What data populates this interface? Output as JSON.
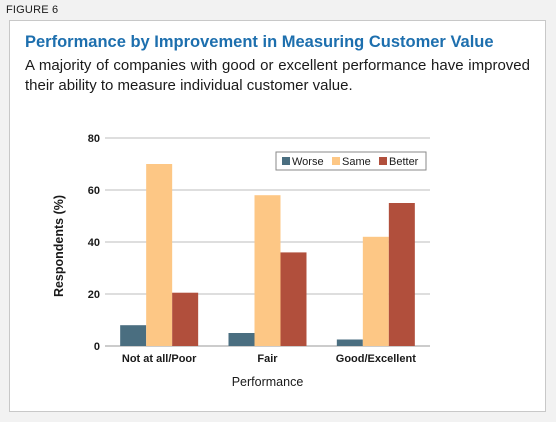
{
  "figure_label": "FIGURE 6",
  "title": "Performance by Improvement in Measuring Customer Value",
  "subtitle": "A majority of companies with good or excellent performance have improved their ability to measure individual customer value.",
  "chart_data": {
    "type": "bar",
    "categories": [
      "Not at all/Poor",
      "Fair",
      "Good/Excellent"
    ],
    "series": [
      {
        "name": "Worse",
        "values": [
          8,
          5,
          2.5
        ],
        "color": "#4a6e80"
      },
      {
        "name": "Same",
        "values": [
          70,
          58,
          42
        ],
        "color": "#fdc785"
      },
      {
        "name": "Better",
        "values": [
          20.5,
          36,
          55
        ],
        "color": "#b14f3c"
      }
    ],
    "xlabel": "Performance",
    "ylabel": "Respondents (%)",
    "ylim": [
      0,
      80
    ],
    "yticks": [
      0,
      20,
      40,
      60,
      80
    ],
    "grid": true,
    "legend_position": "top-right"
  }
}
